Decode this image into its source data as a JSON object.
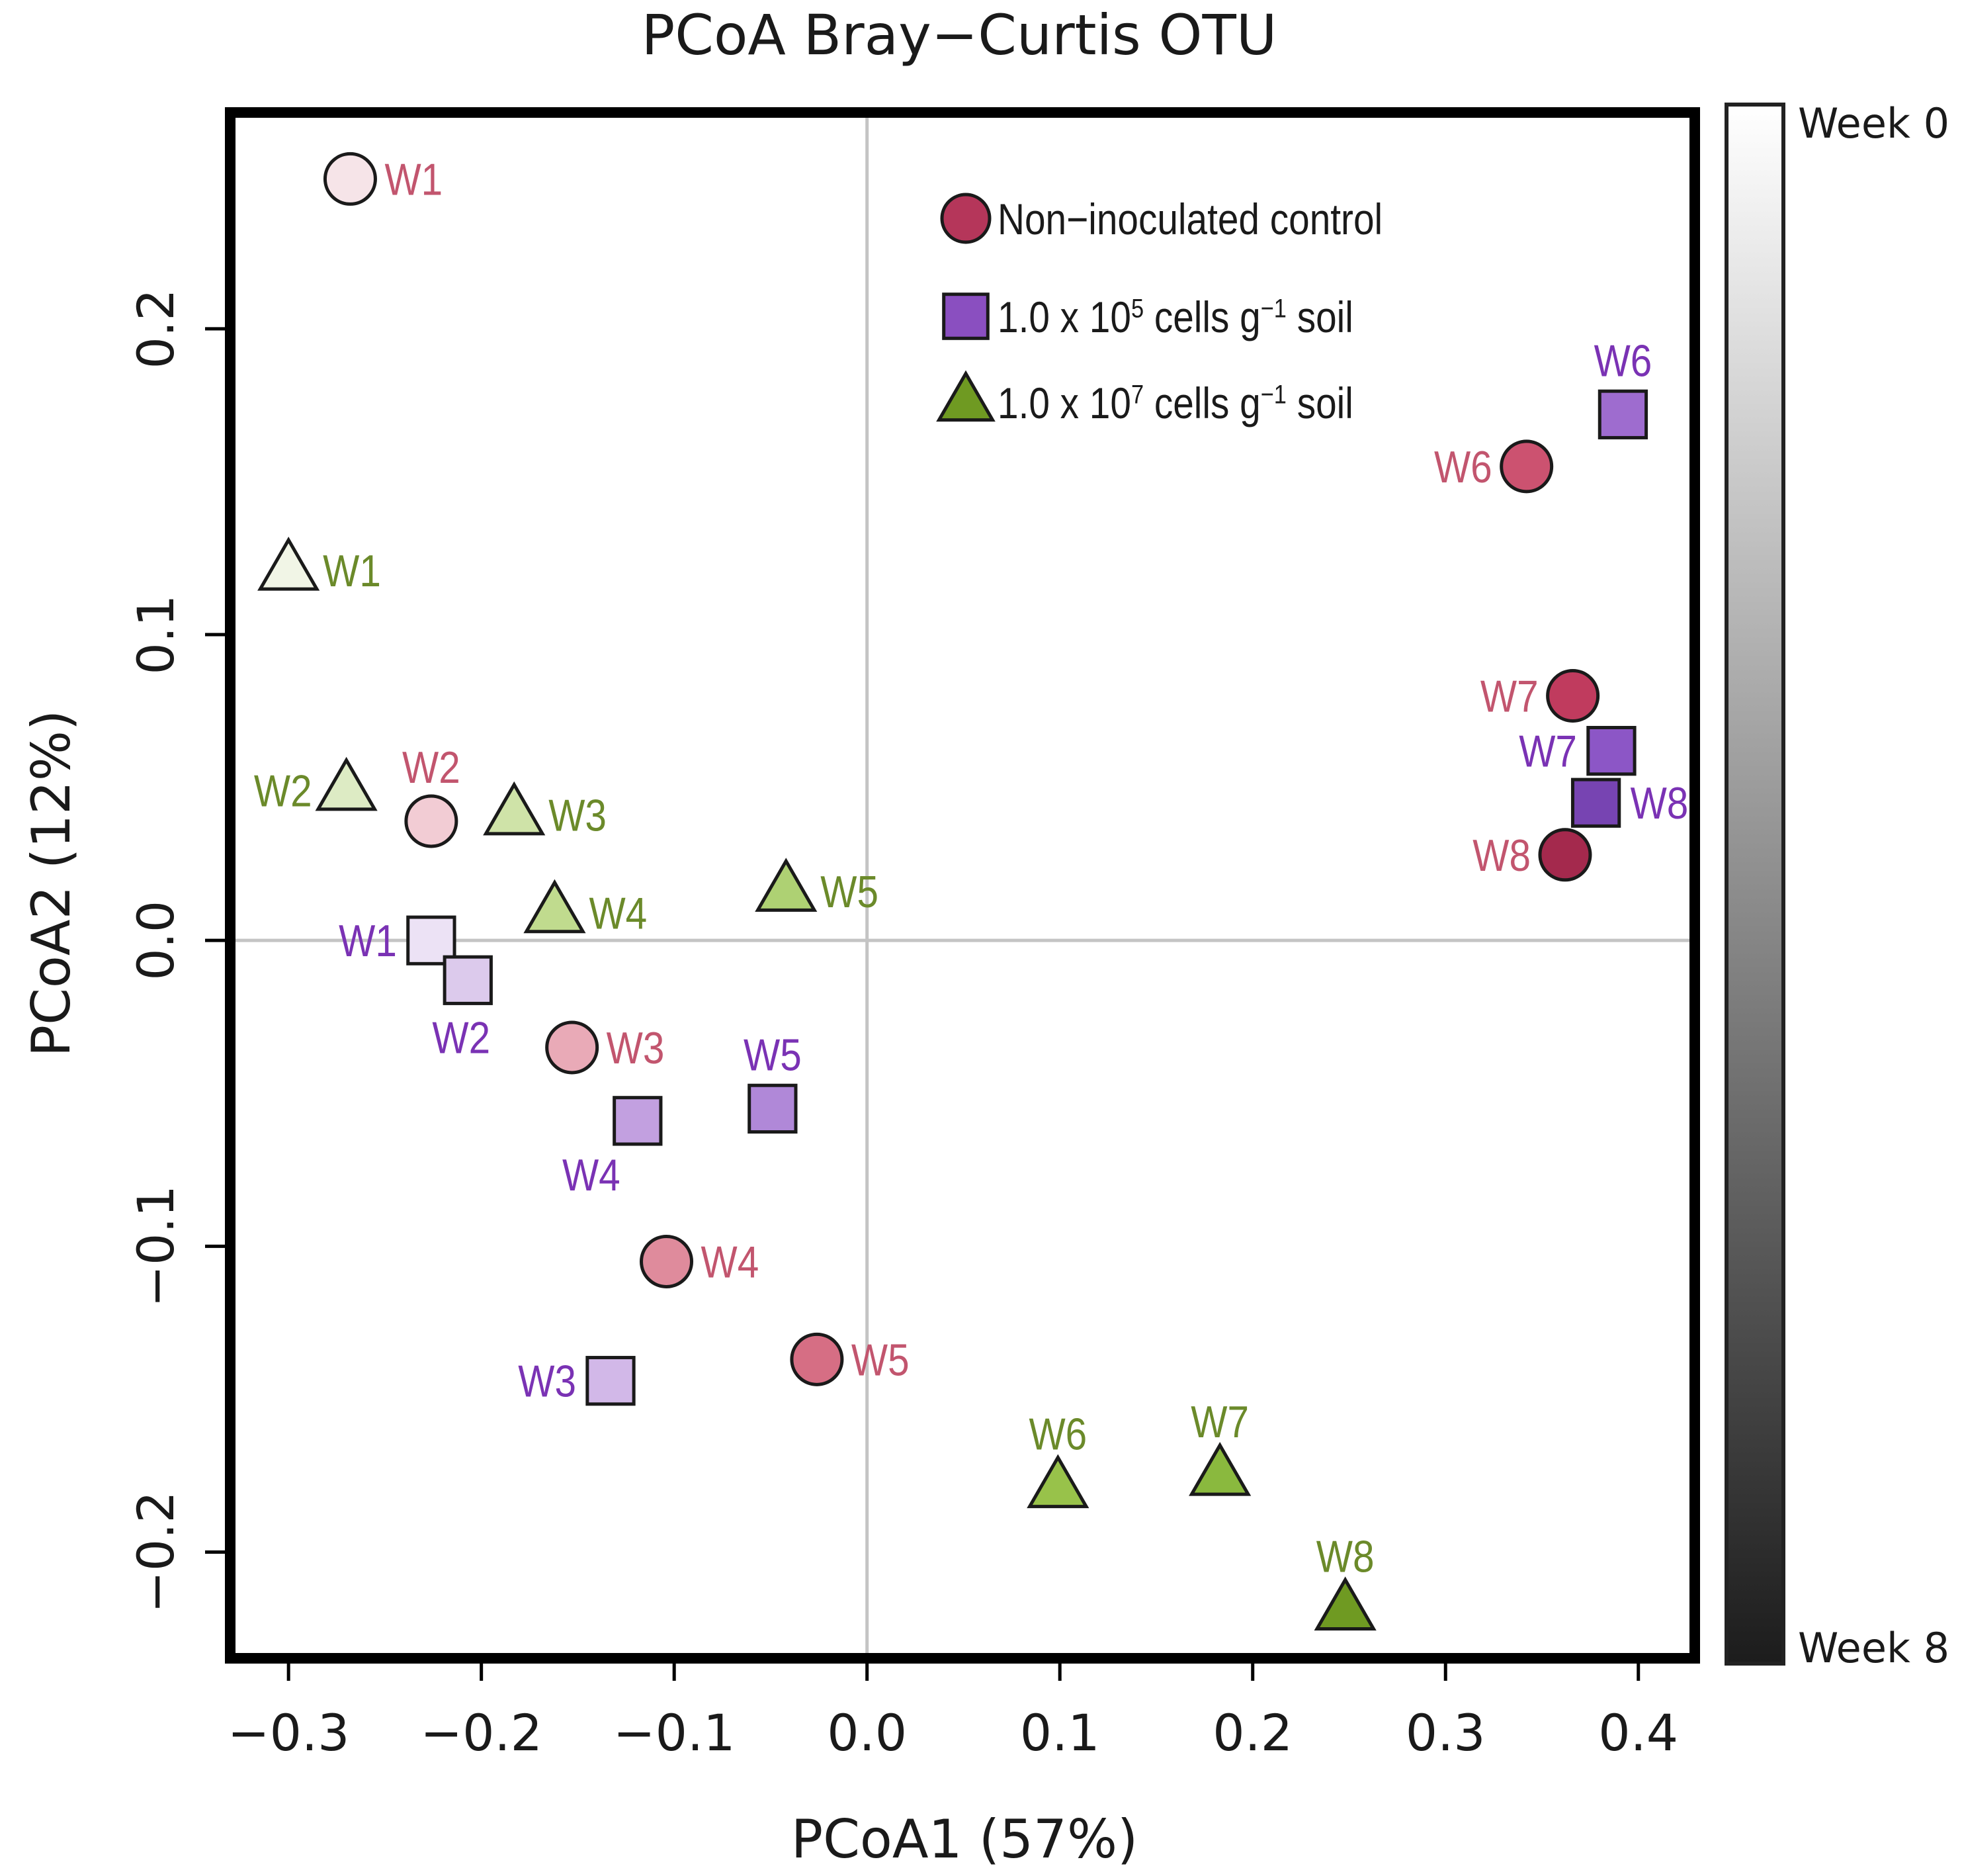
{
  "chart_data": {
    "type": "scatter",
    "title": "PCoA Bray−Curtis OTU",
    "xlabel": "PCoA1 (57%)",
    "ylabel": "PCoA2 (12%)",
    "xlim": [
      -0.3275,
      0.4265
    ],
    "ylim": [
      -0.233,
      0.269
    ],
    "x_ticks": [
      {
        "value": -0.3,
        "label": "−0.3"
      },
      {
        "value": -0.2,
        "label": "−0.2"
      },
      {
        "value": -0.1,
        "label": "−0.1"
      },
      {
        "value": 0.0,
        "label": "0.0"
      },
      {
        "value": 0.1,
        "label": "0.1"
      },
      {
        "value": 0.2,
        "label": "0.2"
      },
      {
        "value": 0.3,
        "label": "0.3"
      },
      {
        "value": 0.4,
        "label": "0.4"
      }
    ],
    "y_ticks": [
      {
        "value": -0.2,
        "label": "−0.2"
      },
      {
        "value": -0.1,
        "label": "−0.1"
      },
      {
        "value": 0.0,
        "label": "0.0"
      },
      {
        "value": 0.1,
        "label": "0.1"
      },
      {
        "value": 0.2,
        "label": "0.2"
      }
    ],
    "reference_lines": {
      "x": 0,
      "y": 0
    },
    "legend": {
      "placement": "top-center",
      "entries": [
        {
          "label": "Non−inoculated control",
          "shape": "circle",
          "color": "#b5365a"
        },
        {
          "label": "1.0 x 10",
          "sup": "5",
          "label_after": " cells g",
          "sup2": "−1",
          "label_end": " soil",
          "shape": "square",
          "color": "#8a4fc0"
        },
        {
          "label": "1.0 x 10",
          "sup": "7",
          "label_after": " cells g",
          "sup2": "−1",
          "label_end": " soil",
          "shape": "triangle",
          "color": "#6f9a22"
        }
      ]
    },
    "colorbar": {
      "top_label": "Week 0",
      "bottom_label": "Week 8",
      "colors": [
        "#ffffff",
        "#1c1c1c"
      ]
    },
    "series": [
      {
        "name": "Non−inoculated control",
        "shape": "circle",
        "label_color": "#c2556e",
        "points": [
          {
            "label": "W1",
            "x": -0.268,
            "y": 0.249,
            "color": "#f6e4e8",
            "label_side": "right"
          },
          {
            "label": "W2",
            "x": -0.226,
            "y": 0.039,
            "color": "#f2ccd4",
            "label_side": "above"
          },
          {
            "label": "W3",
            "x": -0.153,
            "y": -0.035,
            "color": "#e9aab7",
            "label_side": "right"
          },
          {
            "label": "W4",
            "x": -0.104,
            "y": -0.105,
            "color": "#df8b9c",
            "label_side": "right"
          },
          {
            "label": "W5",
            "x": -0.026,
            "y": -0.137,
            "color": "#d66e84",
            "label_side": "right"
          },
          {
            "label": "W6",
            "x": 0.342,
            "y": 0.155,
            "color": "#cc5270",
            "label_side": "left"
          },
          {
            "label": "W7",
            "x": 0.366,
            "y": 0.08,
            "color": "#c03b5e",
            "label_side": "left"
          },
          {
            "label": "W8",
            "x": 0.362,
            "y": 0.028,
            "color": "#a4294d",
            "label_side": "left"
          }
        ]
      },
      {
        "name": "1.0 x 10^5 cells g^-1 soil",
        "shape": "square",
        "label_color": "#7a32b4",
        "points": [
          {
            "label": "W1",
            "x": -0.226,
            "y": 0.0,
            "color": "#ece2f5",
            "label_side": "left"
          },
          {
            "label": "W2",
            "x": -0.207,
            "y": -0.013,
            "color": "#dccaec",
            "label_side": "below"
          },
          {
            "label": "W3",
            "x": -0.133,
            "y": -0.144,
            "color": "#d2b8e8",
            "label_side": "left"
          },
          {
            "label": "W4",
            "x": -0.119,
            "y": -0.059,
            "color": "#c2a0e0",
            "label_side": "below-left"
          },
          {
            "label": "W5",
            "x": -0.049,
            "y": -0.055,
            "color": "#b088d8",
            "label_side": "above"
          },
          {
            "label": "W6",
            "x": 0.392,
            "y": 0.172,
            "color": "#9e6ccf",
            "label_side": "above"
          },
          {
            "label": "W7",
            "x": 0.386,
            "y": 0.062,
            "color": "#8c56c6",
            "label_side": "left"
          },
          {
            "label": "W8",
            "x": 0.378,
            "y": 0.045,
            "color": "#7744b2",
            "label_side": "right"
          }
        ]
      },
      {
        "name": "1.0 x 10^7 cells g^-1 soil",
        "shape": "triangle",
        "label_color": "#6b8a2a",
        "points": [
          {
            "label": "W1",
            "x": -0.3,
            "y": 0.121,
            "color": "#f1f5e6",
            "label_side": "right"
          },
          {
            "label": "W2",
            "x": -0.27,
            "y": 0.049,
            "color": "#ddebc4",
            "label_side": "left"
          },
          {
            "label": "W3",
            "x": -0.183,
            "y": 0.041,
            "color": "#cfe3a8",
            "label_side": "right"
          },
          {
            "label": "W4",
            "x": -0.162,
            "y": 0.009,
            "color": "#c0db8e",
            "label_side": "right"
          },
          {
            "label": "W5",
            "x": -0.042,
            "y": 0.016,
            "color": "#aed173",
            "label_side": "right"
          },
          {
            "label": "W6",
            "x": 0.099,
            "y": -0.179,
            "color": "#98c24a",
            "label_side": "above"
          },
          {
            "label": "W7",
            "x": 0.183,
            "y": -0.175,
            "color": "#8ab93e",
            "label_side": "above"
          },
          {
            "label": "W8",
            "x": 0.248,
            "y": -0.219,
            "color": "#6f9a22",
            "label_side": "above"
          }
        ]
      }
    ]
  }
}
